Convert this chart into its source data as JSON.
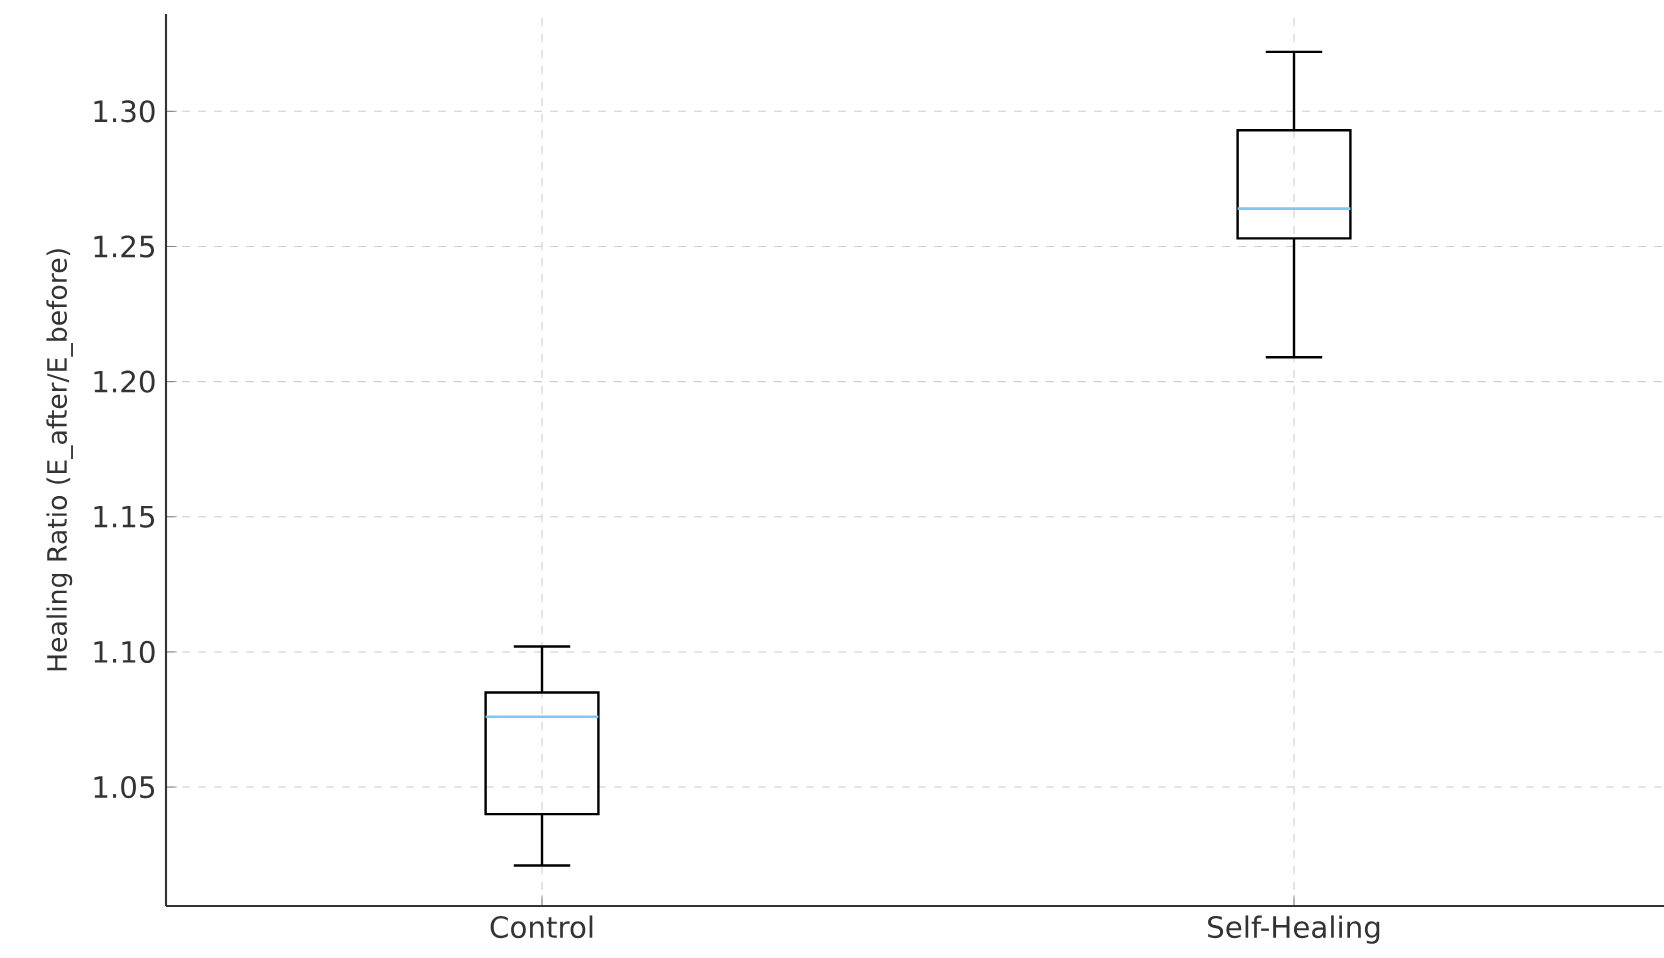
{
  "chart_data": {
    "type": "box",
    "categories": [
      "Control",
      "Self-Healing"
    ],
    "ylabel": "Healing Ratio (E_after/E_before)",
    "color": "#000000",
    "boxes": [
      {
        "low": 1.021,
        "q1": 1.04,
        "median": 1.076,
        "q3": 1.085,
        "high": 1.102
      },
      {
        "low": 1.209,
        "q1": 1.253,
        "median": 1.264,
        "q3": 1.293,
        "high": 1.322
      }
    ],
    "ylim": [
      1.006,
      1.336
    ],
    "yticks": [
      {
        "value": 1.05,
        "label": "1.05"
      },
      {
        "value": 1.1,
        "label": "1.10"
      },
      {
        "value": 1.15,
        "label": "1.15"
      },
      {
        "value": 1.2,
        "label": "1.20"
      },
      {
        "value": 1.25,
        "label": "1.25"
      },
      {
        "value": 1.3,
        "label": "1.30"
      }
    ],
    "grid": true
  }
}
